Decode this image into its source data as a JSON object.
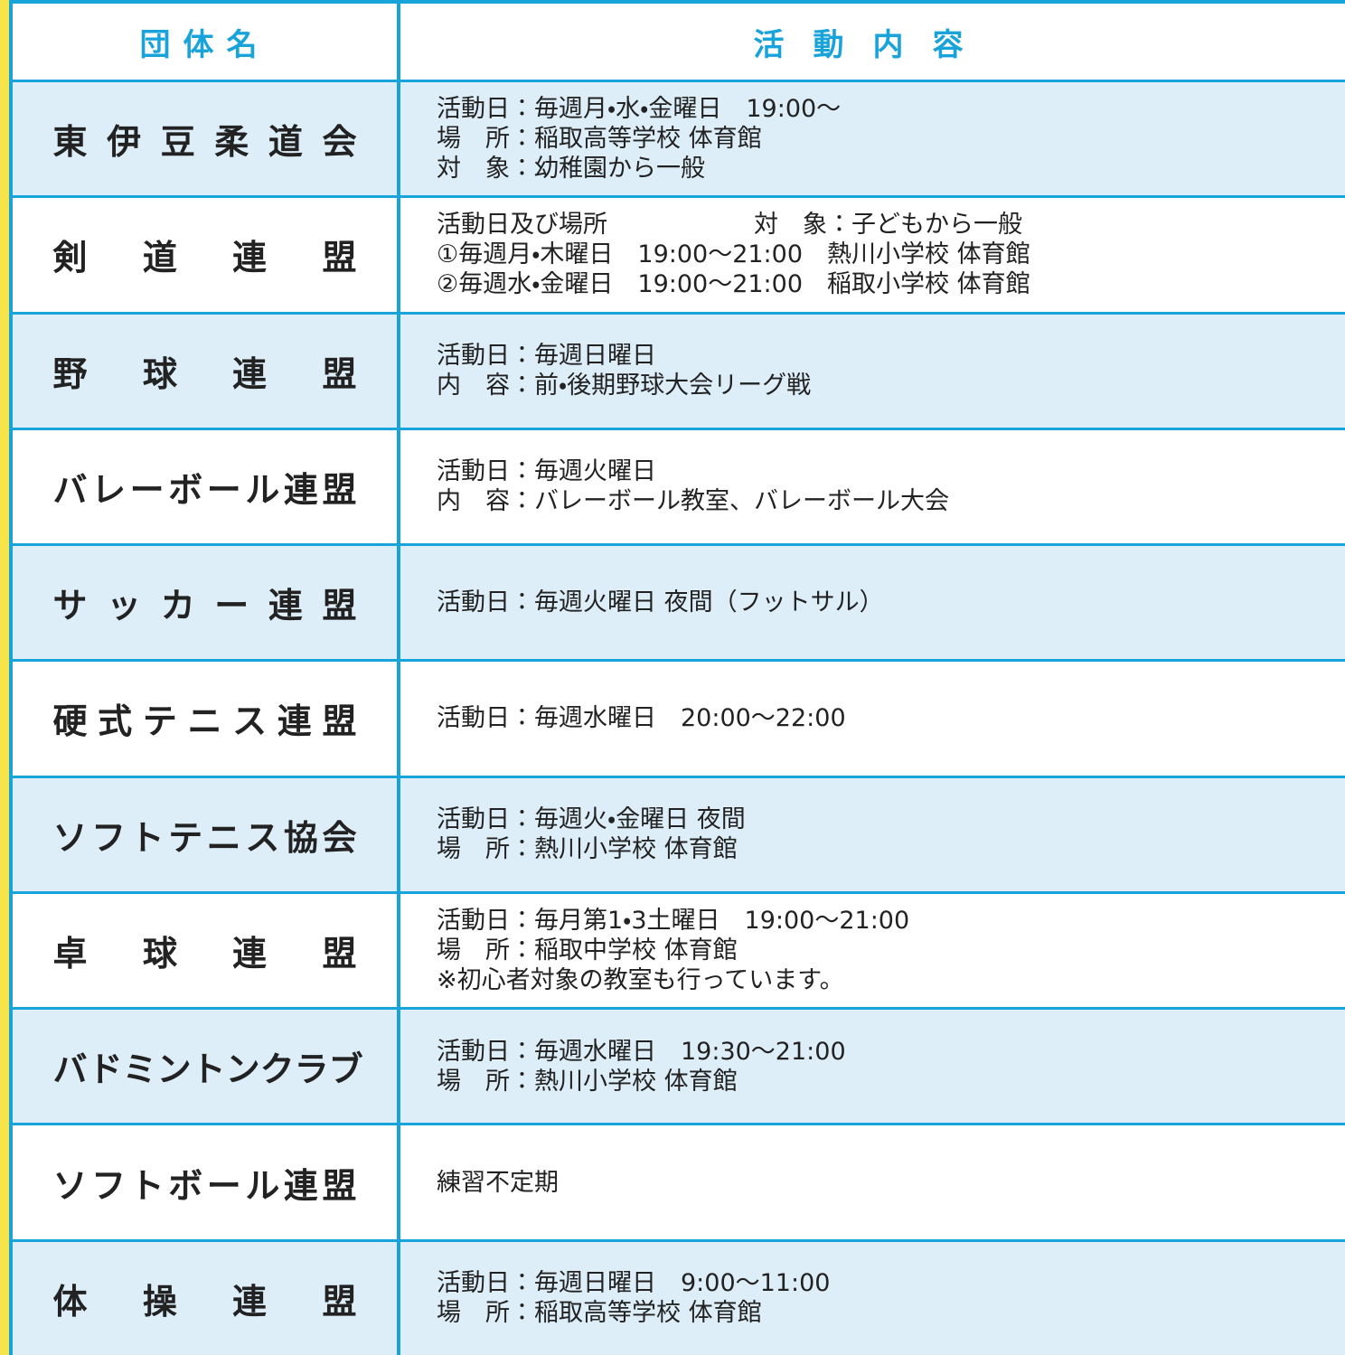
{
  "header": {
    "columns": [
      "団体名",
      "活動内容"
    ]
  },
  "rows": [
    {
      "name": "東伊豆柔道会",
      "lines": [
        "活動日：毎週月・水・金曜日　19:00〜",
        "場　所：稲取高等学校 体育館",
        "対　象：幼稚園から一般"
      ]
    },
    {
      "name": "剣道連盟",
      "lines": [
        "活動日及び場所　　　　　　対　象：子どもから一般",
        "①毎週月・木曜日　19:00〜21:00　熱川小学校 体育館",
        "②毎週水・金曜日　19:00〜21:00　稲取小学校 体育館"
      ]
    },
    {
      "name": "野球連盟",
      "lines": [
        "活動日：毎週日曜日",
        "内　容：前・後期野球大会リーグ戦"
      ]
    },
    {
      "name": "バレーボール連盟",
      "lines": [
        "活動日：毎週火曜日",
        "内　容：バレーボール教室、バレーボール大会"
      ]
    },
    {
      "name": "サッカー連盟",
      "lines": [
        "活動日：毎週火曜日 夜間（フットサル）"
      ]
    },
    {
      "name": "硬式テニス連盟",
      "lines": [
        "活動日：毎週水曜日　20:00〜22:00"
      ]
    },
    {
      "name": "ソフトテニス協会",
      "lines": [
        "活動日：毎週火・金曜日 夜間",
        "場　所：熱川小学校 体育館"
      ]
    },
    {
      "name": "卓球連盟",
      "lines": [
        "活動日：毎月第1・3土曜日　19:00〜21:00",
        "場　所：稲取中学校 体育館",
        "※初心者対象の教室も行っています。"
      ]
    },
    {
      "name": "バドミントンクラブ",
      "lines": [
        "活動日：毎週水曜日　19:30〜21:00",
        "場　所：熱川小学校 体育館"
      ]
    },
    {
      "name": "ソフトボール連盟",
      "lines": [
        "練習不定期"
      ]
    },
    {
      "name": "体操連盟",
      "lines": [
        "活動日：毎週日曜日　9:00〜11:00",
        "場　所：稲取高等学校 体育館"
      ]
    }
  ]
}
